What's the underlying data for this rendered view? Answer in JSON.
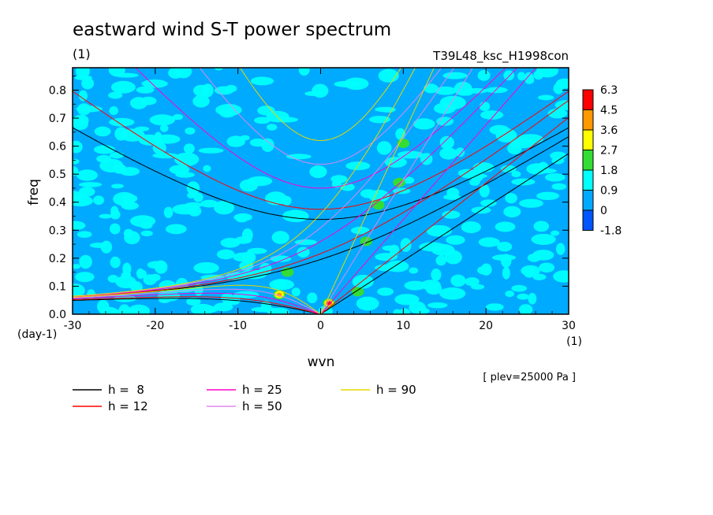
{
  "chart_data": {
    "type": "heatmap",
    "title": "eastward wind S-T power spectrum",
    "subtitle_left": "(1)",
    "subtitle_right": "T39L48_ksc_H1998con",
    "xlabel": "wvn",
    "ylabel": "freq",
    "x_unit": "(1)",
    "y_unit": "(day-1)",
    "xlim": [
      -30,
      30
    ],
    "ylim": [
      0,
      0.88
    ],
    "xticks": [
      "-30",
      "-20",
      "-10",
      "0",
      "10",
      "20",
      "30"
    ],
    "yticks": [
      "0.0",
      "0.1",
      "0.2",
      "0.3",
      "0.4",
      "0.5",
      "0.6",
      "0.7",
      "0.8"
    ],
    "note": "[ plev=25000 Pa ]",
    "colorbar": {
      "levels": [
        "6.3",
        "4.5",
        "3.6",
        "2.7",
        "1.8",
        "0.9",
        "0",
        "-1.8"
      ],
      "colors": [
        "#ff0000",
        "#ff9900",
        "#ffff00",
        "#33dd33",
        "#00ffff",
        "#00aaff",
        "#0055ff"
      ]
    },
    "background_color": "#00aaff",
    "dispersion_curves": [
      {
        "label": "h =  8",
        "h": 8,
        "color": "#000000"
      },
      {
        "label": "h = 12",
        "h": 12,
        "color": "#ff0000"
      },
      {
        "label": "h = 25",
        "h": 25,
        "color": "#ff00cc"
      },
      {
        "label": "h = 50",
        "h": 50,
        "color": "#dd88ee"
      },
      {
        "label": "h = 90",
        "h": 90,
        "color": "#e6d800"
      }
    ],
    "hotspots": [
      {
        "x": -5,
        "y": 0.07,
        "level": 4
      },
      {
        "x": 1,
        "y": 0.04,
        "level": 5
      },
      {
        "x": -4,
        "y": 0.15,
        "level": 3
      },
      {
        "x": 4.5,
        "y": 0.08,
        "level": 3
      },
      {
        "x": 5.5,
        "y": 0.26,
        "level": 3
      },
      {
        "x": 9.5,
        "y": 0.47,
        "level": 3
      },
      {
        "x": 10,
        "y": 0.61,
        "level": 3
      },
      {
        "x": 7,
        "y": 0.39,
        "level": 3
      }
    ]
  }
}
